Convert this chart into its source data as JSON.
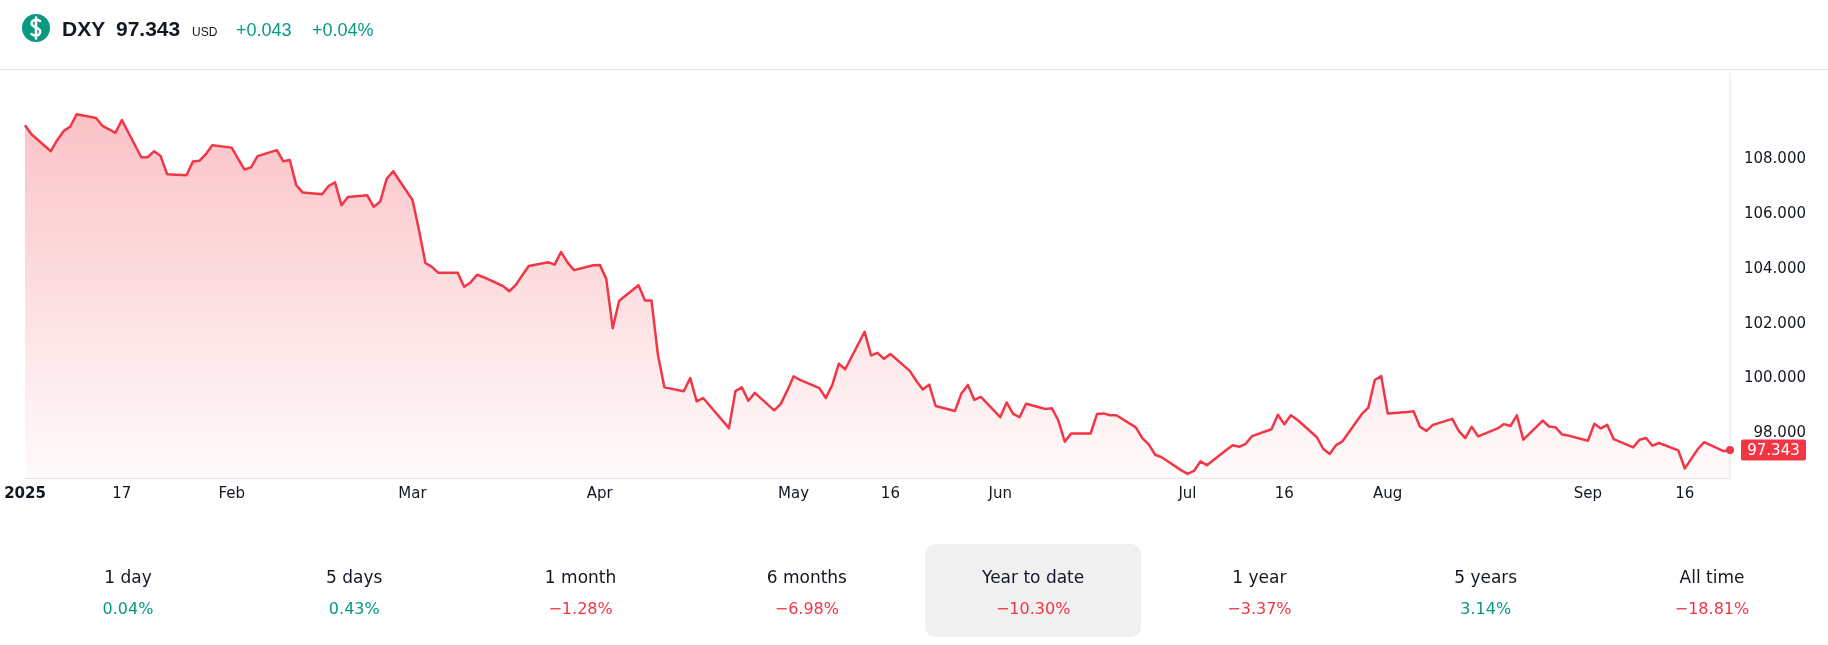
{
  "chart_data": [
    {
      "type": "area",
      "title": "DXY",
      "annotations": [
        "97.343",
        "USD",
        "+0.043",
        "+0.04%",
        {
          "text": "97.343",
          "x": "2025-09-23",
          "y": 97.343
        }
      ],
      "x": [
        "2025-01-02",
        "2025-01-03",
        "2025-01-06",
        "2025-01-07",
        "2025-01-08",
        "2025-01-09",
        "2025-01-10",
        "2025-01-13",
        "2025-01-14",
        "2025-01-15",
        "2025-01-16",
        "2025-01-17",
        "2025-01-20",
        "2025-01-21",
        "2025-01-22",
        "2025-01-23",
        "2025-01-24",
        "2025-01-27",
        "2025-01-28",
        "2025-01-29",
        "2025-01-30",
        "2025-01-31",
        "2025-02-03",
        "2025-02-04",
        "2025-02-05",
        "2025-02-06",
        "2025-02-07",
        "2025-02-10",
        "2025-02-11",
        "2025-02-12",
        "2025-02-13",
        "2025-02-14",
        "2025-02-17",
        "2025-02-18",
        "2025-02-19",
        "2025-02-20",
        "2025-02-21",
        "2025-02-24",
        "2025-02-25",
        "2025-02-26",
        "2025-02-27",
        "2025-02-28",
        "2025-03-03",
        "2025-03-04",
        "2025-03-05",
        "2025-03-06",
        "2025-03-07",
        "2025-03-10",
        "2025-03-11",
        "2025-03-12",
        "2025-03-13",
        "2025-03-14",
        "2025-03-17",
        "2025-03-18",
        "2025-03-19",
        "2025-03-20",
        "2025-03-21",
        "2025-03-24",
        "2025-03-25",
        "2025-03-26",
        "2025-03-27",
        "2025-03-28",
        "2025-03-31",
        "2025-04-01",
        "2025-04-02",
        "2025-04-03",
        "2025-04-04",
        "2025-04-07",
        "2025-04-08",
        "2025-04-09",
        "2025-04-10",
        "2025-04-11",
        "2025-04-14",
        "2025-04-15",
        "2025-04-16",
        "2025-04-17",
        "2025-04-21",
        "2025-04-22",
        "2025-04-23",
        "2025-04-24",
        "2025-04-25",
        "2025-04-28",
        "2025-04-29",
        "2025-04-30",
        "2025-05-01",
        "2025-05-02",
        "2025-05-05",
        "2025-05-06",
        "2025-05-07",
        "2025-05-08",
        "2025-05-09",
        "2025-05-12",
        "2025-05-13",
        "2025-05-14",
        "2025-05-15",
        "2025-05-16",
        "2025-05-19",
        "2025-05-20",
        "2025-05-21",
        "2025-05-22",
        "2025-05-23",
        "2025-05-26",
        "2025-05-27",
        "2025-05-28",
        "2025-05-29",
        "2025-05-30",
        "2025-06-02",
        "2025-06-03",
        "2025-06-04",
        "2025-06-05",
        "2025-06-06",
        "2025-06-09",
        "2025-06-10",
        "2025-06-11",
        "2025-06-12",
        "2025-06-13",
        "2025-06-16",
        "2025-06-17",
        "2025-06-18",
        "2025-06-19",
        "2025-06-20",
        "2025-06-23",
        "2025-06-24",
        "2025-06-25",
        "2025-06-26",
        "2025-06-27",
        "2025-06-30",
        "2025-07-01",
        "2025-07-02",
        "2025-07-03",
        "2025-07-04",
        "2025-07-07",
        "2025-07-08",
        "2025-07-09",
        "2025-07-10",
        "2025-07-11",
        "2025-07-14",
        "2025-07-15",
        "2025-07-16",
        "2025-07-17",
        "2025-07-18",
        "2025-07-21",
        "2025-07-22",
        "2025-07-23",
        "2025-07-24",
        "2025-07-25",
        "2025-07-28",
        "2025-07-29",
        "2025-07-30",
        "2025-07-31",
        "2025-08-01",
        "2025-08-04",
        "2025-08-05",
        "2025-08-06",
        "2025-08-07",
        "2025-08-08",
        "2025-08-11",
        "2025-08-12",
        "2025-08-13",
        "2025-08-14",
        "2025-08-15",
        "2025-08-18",
        "2025-08-19",
        "2025-08-20",
        "2025-08-21",
        "2025-08-22",
        "2025-08-25",
        "2025-08-26",
        "2025-08-27",
        "2025-08-28",
        "2025-08-29",
        "2025-09-01",
        "2025-09-02",
        "2025-09-03",
        "2025-09-04",
        "2025-09-05",
        "2025-09-08",
        "2025-09-09",
        "2025-09-10",
        "2025-09-11",
        "2025-09-12",
        "2025-09-15",
        "2025-09-16",
        "2025-09-17",
        "2025-09-18",
        "2025-09-19",
        "2025-09-22",
        "2025-09-23"
      ],
      "series": [
        {
          "color": "#f23645",
          "values": [
            109.2,
            108.87,
            108.25,
            108.66,
            108.99,
            109.14,
            109.6,
            109.46,
            109.17,
            109.05,
            108.92,
            109.39,
            108.03,
            108.03,
            108.25,
            108.07,
            107.41,
            107.37,
            107.87,
            107.9,
            108.14,
            108.47,
            108.38,
            107.97,
            107.58,
            107.66,
            108.07,
            108.29,
            107.88,
            107.93,
            107.01,
            106.74,
            106.68,
            106.98,
            107.11,
            106.28,
            106.58,
            106.64,
            106.22,
            106.41,
            107.24,
            107.52,
            106.47,
            105.37,
            104.17,
            104.03,
            103.81,
            103.81,
            103.3,
            103.46,
            103.74,
            103.65,
            103.33,
            103.14,
            103.37,
            103.72,
            104.06,
            104.2,
            104.11,
            104.57,
            104.19,
            103.91,
            104.09,
            104.1,
            103.59,
            101.79,
            102.79,
            103.36,
            102.8,
            102.8,
            100.82,
            99.63,
            99.49,
            99.97,
            99.12,
            99.24,
            98.14,
            99.49,
            99.63,
            99.14,
            99.43,
            98.79,
            99.02,
            99.5,
            100.03,
            99.9,
            99.6,
            99.24,
            99.72,
            100.49,
            100.29,
            101.66,
            100.8,
            100.89,
            100.67,
            100.85,
            100.23,
            99.87,
            99.55,
            99.73,
            98.95,
            98.77,
            99.41,
            99.72,
            99.17,
            99.28,
            98.54,
            99.08,
            98.66,
            98.54,
            99.03,
            98.84,
            98.87,
            98.42,
            97.65,
            97.95,
            97.95,
            98.66,
            98.68,
            98.61,
            98.61,
            98.17,
            97.78,
            97.55,
            97.17,
            97.08,
            96.61,
            96.47,
            96.58,
            96.93,
            96.79,
            97.34,
            97.52,
            97.46,
            97.57,
            97.85,
            98.1,
            98.63,
            98.28,
            98.61,
            98.45,
            97.82,
            97.39,
            97.2,
            97.52,
            97.66,
            98.66,
            98.89,
            99.9,
            100.04,
            98.68,
            98.73,
            98.76,
            98.19,
            98.04,
            98.26,
            98.48,
            98.04,
            97.78,
            98.19,
            97.84,
            98.13,
            98.29,
            98.22,
            98.61,
            97.72,
            98.42,
            98.2,
            98.17,
            97.91,
            97.87,
            97.68,
            98.3,
            98.13,
            98.26,
            97.74,
            97.44,
            97.72,
            97.78,
            97.5,
            97.6,
            97.33,
            96.67,
            97.02,
            97.37,
            97.63,
            97.3,
            97.343
          ]
        }
      ],
      "xlim": [
        "2025-01-02",
        "2025-09-23"
      ],
      "xticks": [
        {
          "value": "2025-01-02",
          "label": "2025"
        },
        {
          "value": "2025-01-17",
          "label": "17"
        },
        {
          "value": "2025-02-03",
          "label": "Feb"
        },
        {
          "value": "2025-03-03",
          "label": "Mar"
        },
        {
          "value": "2025-04-01",
          "label": "Apr"
        },
        {
          "value": "2025-05-01",
          "label": "May"
        },
        {
          "value": "2025-05-16",
          "label": "16"
        },
        {
          "value": "2025-06-02",
          "label": "Jun"
        },
        {
          "value": "2025-07-01",
          "label": "Jul"
        },
        {
          "value": "2025-07-16",
          "label": "16"
        },
        {
          "value": "2025-08-01",
          "label": "Aug"
        },
        {
          "value": "2025-09-01",
          "label": "Sep"
        },
        {
          "value": "2025-09-16",
          "label": "16"
        }
      ],
      "ylim": [
        96.3,
        111.1
      ],
      "yticks": [
        {
          "value": 98,
          "label": "98.000"
        },
        {
          "value": 100,
          "label": "100.000"
        },
        {
          "value": 102,
          "label": "102.000"
        },
        {
          "value": 104,
          "label": "104.000"
        },
        {
          "value": 106,
          "label": "106.000"
        },
        {
          "value": 108,
          "label": "108.000"
        }
      ]
    },
    {
      "type": "other",
      "categories": [
        "1 day",
        "5 days",
        "1 month",
        "6 months",
        "Year to date",
        "1 year",
        "5 years",
        "All time"
      ],
      "value_labels": [
        "0.04%",
        "0.43%",
        "−1.28%",
        "−6.98%",
        "−10.30%",
        "−3.37%",
        "3.14%",
        "−18.81%"
      ],
      "colors": [
        "#089981",
        "#089981",
        "#f23645",
        "#f23645",
        "#f23645",
        "#f23645",
        "#089981",
        "#f23645"
      ]
    }
  ]
}
